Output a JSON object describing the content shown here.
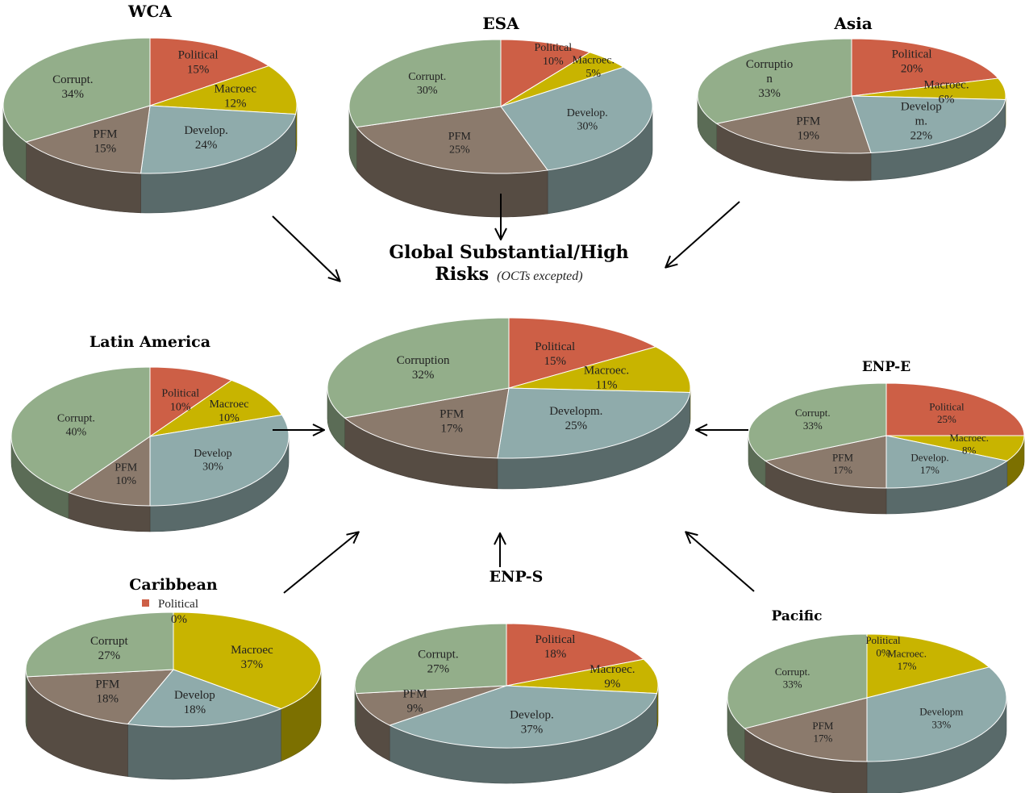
{
  "colors": {
    "Political": "#cd5f46",
    "Macroec.": "#c8b400",
    "Develop.": "#8fabab",
    "PFM": "#8b7a6c",
    "Corrupt.": "#93ae8a"
  },
  "center_title": {
    "line1": "Global Substantial/High",
    "line2_bold": "Risks",
    "line2_italic": "(OCTs excepted)"
  },
  "chart_data": [
    {
      "type": "pie",
      "title": "",
      "slices": [
        {
          "key": "Political",
          "label": [
            "Political",
            "15%"
          ],
          "value": 15
        },
        {
          "key": "Macroec.",
          "label": [
            "Macroec.",
            "11%"
          ],
          "value": 11
        },
        {
          "key": "Develop.",
          "label": [
            "Developm.",
            "25%"
          ],
          "value": 25
        },
        {
          "key": "PFM",
          "label": [
            "PFM",
            "17%"
          ],
          "value": 17
        },
        {
          "key": "Corrupt.",
          "label": [
            "Corruption",
            "32%"
          ],
          "value": 32
        }
      ]
    },
    {
      "type": "pie",
      "title": "WCA",
      "slices": [
        {
          "key": "Political",
          "label": [
            "Political",
            "15%"
          ],
          "value": 15
        },
        {
          "key": "Macroec.",
          "label": [
            "Macroec",
            "12%"
          ],
          "value": 12
        },
        {
          "key": "Develop.",
          "label": [
            "Develop.",
            "24%"
          ],
          "value": 24
        },
        {
          "key": "PFM",
          "label": [
            "PFM",
            "15%"
          ],
          "value": 15
        },
        {
          "key": "Corrupt.",
          "label": [
            "Corrupt.",
            "34%"
          ],
          "value": 34
        }
      ]
    },
    {
      "type": "pie",
      "title": "ESA",
      "slices": [
        {
          "key": "Political",
          "label": [
            "Political",
            "10%"
          ],
          "value": 10
        },
        {
          "key": "Macroec.",
          "label": [
            "Macroec.",
            "5%"
          ],
          "value": 5
        },
        {
          "key": "Develop.",
          "label": [
            "Develop.",
            "30%"
          ],
          "value": 30
        },
        {
          "key": "PFM",
          "label": [
            "PFM",
            "25%"
          ],
          "value": 25
        },
        {
          "key": "Corrupt.",
          "label": [
            "Corrupt.",
            "30%"
          ],
          "value": 30
        }
      ]
    },
    {
      "type": "pie",
      "title": "Asia",
      "slices": [
        {
          "key": "Political",
          "label": [
            "Political",
            "20%"
          ],
          "value": 20
        },
        {
          "key": "Macroec.",
          "label": [
            "Macroec.",
            "6%"
          ],
          "value": 6
        },
        {
          "key": "Develop.",
          "label": [
            "Develop",
            "m.",
            "22%"
          ],
          "value": 22
        },
        {
          "key": "PFM",
          "label": [
            "PFM",
            "19%"
          ],
          "value": 19
        },
        {
          "key": "Corrupt.",
          "label": [
            "Corruptio",
            "n",
            "33%"
          ],
          "value": 33
        }
      ]
    },
    {
      "type": "pie",
      "title": "Latin America",
      "slices": [
        {
          "key": "Political",
          "label": [
            "Political",
            "10%"
          ],
          "value": 10
        },
        {
          "key": "Macroec.",
          "label": [
            "Macroec",
            "10%"
          ],
          "value": 10
        },
        {
          "key": "Develop.",
          "label": [
            "Develop",
            "30%"
          ],
          "value": 30
        },
        {
          "key": "PFM",
          "label": [
            "PFM",
            "10%"
          ],
          "value": 10
        },
        {
          "key": "Corrupt.",
          "label": [
            "Corrupt.",
            "40%"
          ],
          "value": 40
        }
      ]
    },
    {
      "type": "pie",
      "title": "ENP-E",
      "slices": [
        {
          "key": "Political",
          "label": [
            "Political",
            "25%"
          ],
          "value": 25
        },
        {
          "key": "Macroec.",
          "label": [
            "Macroec.",
            "8%"
          ],
          "value": 8
        },
        {
          "key": "Develop.",
          "label": [
            "Develop.",
            "17%"
          ],
          "value": 17
        },
        {
          "key": "PFM",
          "label": [
            "PFM",
            "17%"
          ],
          "value": 17
        },
        {
          "key": "Corrupt.",
          "label": [
            "Corrupt.",
            "33%"
          ],
          "value": 33
        }
      ]
    },
    {
      "type": "pie",
      "title": "Caribbean",
      "legend": {
        "key": "Political",
        "text": "Political",
        "value_text": "0%"
      },
      "slices": [
        {
          "key": "Political",
          "label": [],
          "value": 0
        },
        {
          "key": "Macroec.",
          "label": [
            "Macroec",
            "37%"
          ],
          "value": 37
        },
        {
          "key": "Develop.",
          "label": [
            "Develop",
            "18%"
          ],
          "value": 18
        },
        {
          "key": "PFM",
          "label": [
            "PFM",
            "18%"
          ],
          "value": 18
        },
        {
          "key": "Corrupt.",
          "label": [
            "Corrupt",
            "27%"
          ],
          "value": 27
        }
      ]
    },
    {
      "type": "pie",
      "title": "ENP-S",
      "slices": [
        {
          "key": "Political",
          "label": [
            "Political",
            "18%"
          ],
          "value": 18
        },
        {
          "key": "Macroec.",
          "label": [
            "Macroec.",
            "9%"
          ],
          "value": 9
        },
        {
          "key": "Develop.",
          "label": [
            "Develop.",
            "37%"
          ],
          "value": 37
        },
        {
          "key": "PFM",
          "label": [
            "PFM",
            "9%"
          ],
          "value": 9
        },
        {
          "key": "Corrupt.",
          "label": [
            "Corrupt.",
            "27%"
          ],
          "value": 27
        }
      ]
    },
    {
      "type": "pie",
      "title": "Pacific",
      "slices": [
        {
          "key": "Political",
          "label": [
            "Political",
            "0%"
          ],
          "value": 0
        },
        {
          "key": "Macroec.",
          "label": [
            "Macroec.",
            "17%"
          ],
          "value": 17
        },
        {
          "key": "Develop.",
          "label": [
            "Developm",
            "33%"
          ],
          "value": 33
        },
        {
          "key": "PFM",
          "label": [
            "PFM",
            "17%"
          ],
          "value": 17
        },
        {
          "key": "Corrupt.",
          "label": [
            "Corrupt.",
            "33%"
          ],
          "value": 33
        }
      ]
    }
  ]
}
